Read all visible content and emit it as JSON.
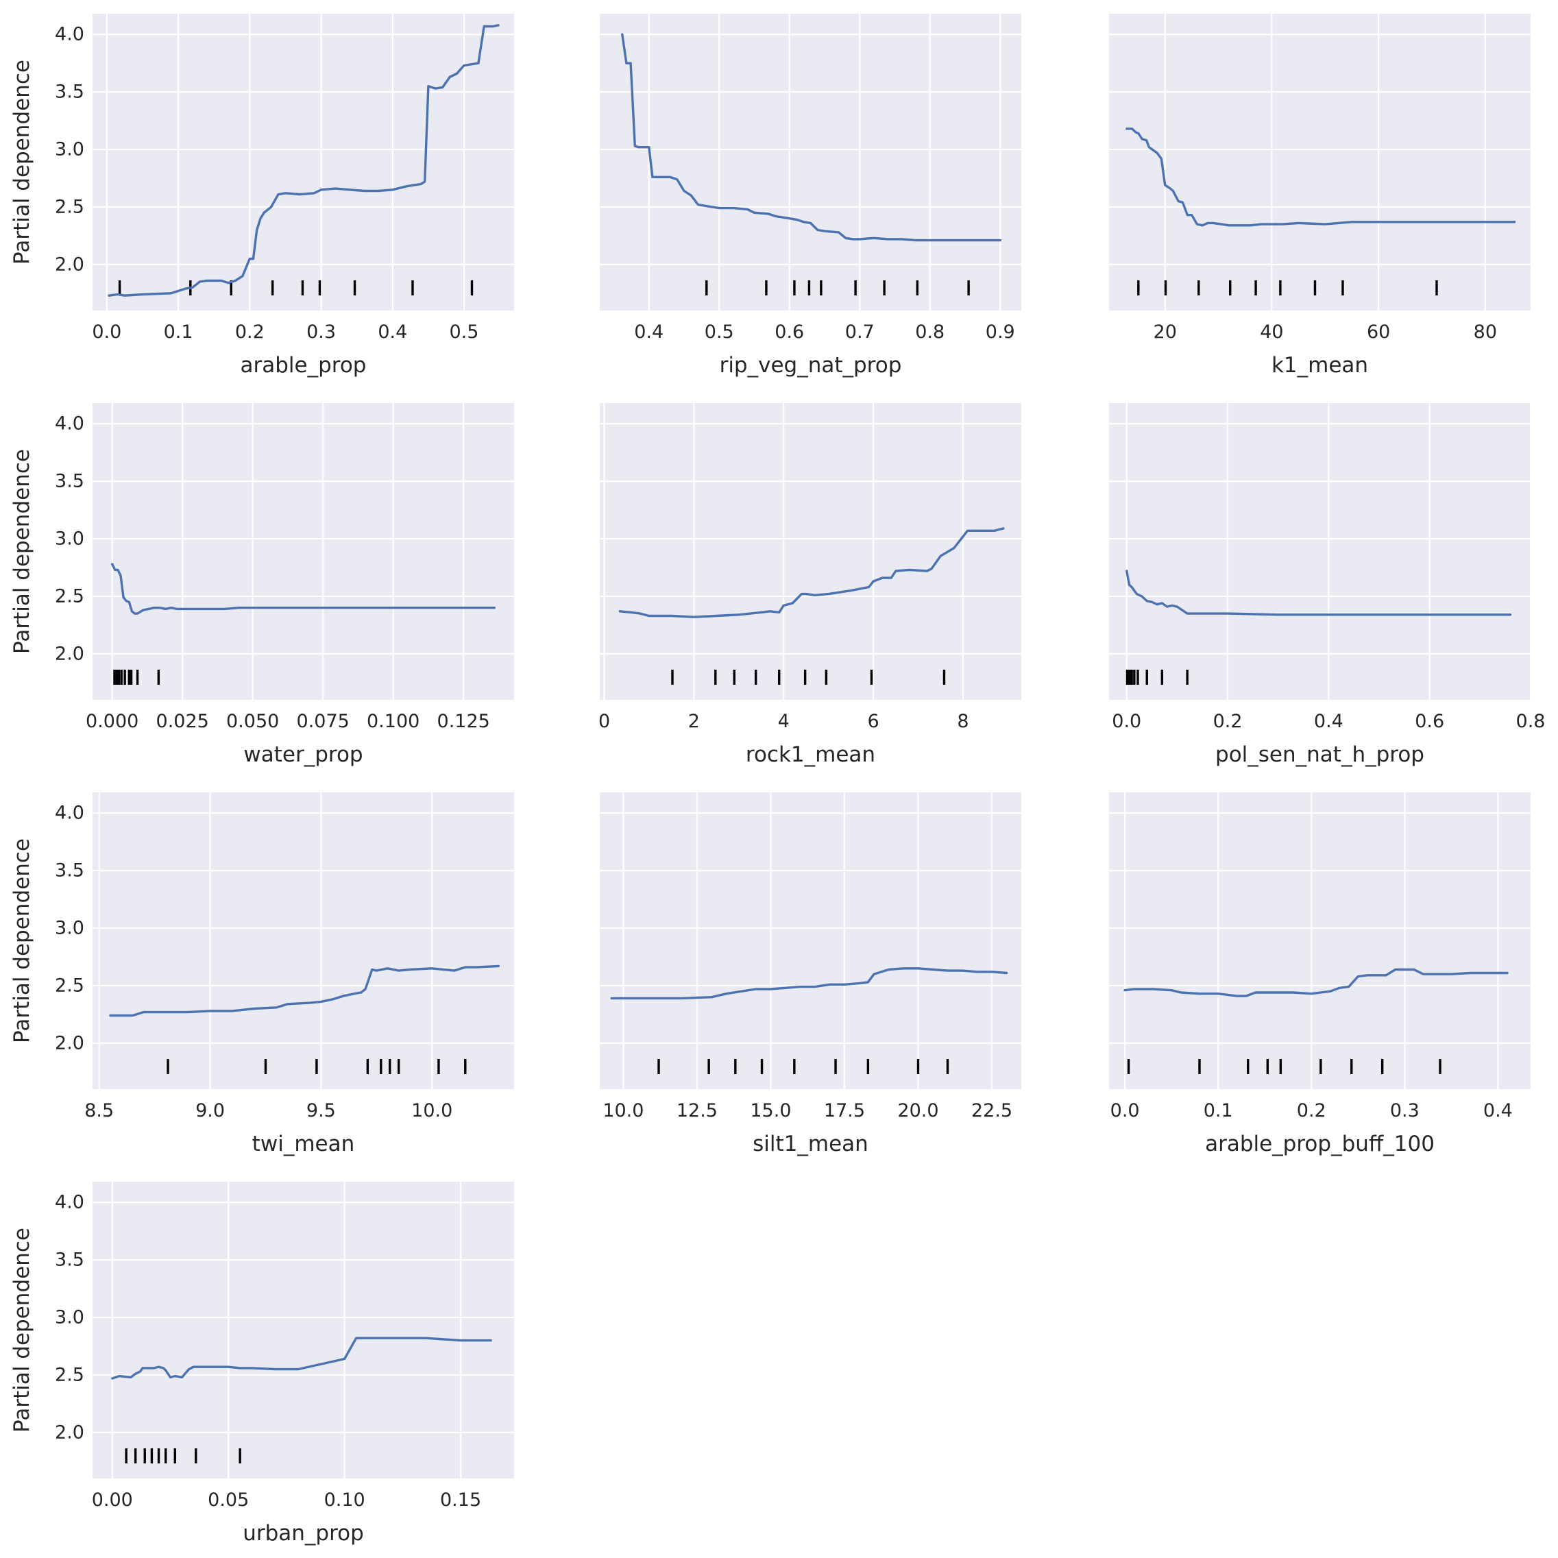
{
  "figure": {
    "ylabel": "Partial dependence",
    "ylim": [
      1.6,
      4.18
    ],
    "yticks": [
      2.0,
      2.5,
      3.0,
      3.5,
      4.0
    ],
    "ytick_labels": [
      "2.0",
      "2.5",
      "3.0",
      "3.5",
      "4.0"
    ],
    "line_color": "#4c72b0",
    "panel_bg_color": "#eaeaf2",
    "decile_color": "#000000"
  },
  "chart_data": [
    {
      "type": "line",
      "xlabel": "arable_prop",
      "xlim": [
        -0.02,
        0.57
      ],
      "xticks": [
        0.0,
        0.1,
        0.2,
        0.3,
        0.4,
        0.5
      ],
      "xtick_labels": [
        "0.0",
        "0.1",
        "0.2",
        "0.3",
        "0.4",
        "0.5"
      ],
      "deciles": [
        0.018,
        0.117,
        0.174,
        0.232,
        0.274,
        0.298,
        0.347,
        0.428,
        0.511
      ],
      "x": [
        0.003,
        0.015,
        0.025,
        0.05,
        0.09,
        0.1,
        0.11,
        0.12,
        0.13,
        0.14,
        0.16,
        0.17,
        0.18,
        0.19,
        0.2,
        0.205,
        0.21,
        0.215,
        0.22,
        0.23,
        0.24,
        0.25,
        0.27,
        0.29,
        0.3,
        0.32,
        0.34,
        0.36,
        0.38,
        0.4,
        0.42,
        0.44,
        0.445,
        0.45,
        0.46,
        0.47,
        0.48,
        0.49,
        0.5,
        0.51,
        0.52,
        0.528,
        0.54,
        0.548
      ],
      "y": [
        1.73,
        1.74,
        1.73,
        1.74,
        1.75,
        1.77,
        1.79,
        1.8,
        1.85,
        1.86,
        1.86,
        1.84,
        1.86,
        1.9,
        2.05,
        2.05,
        2.3,
        2.4,
        2.45,
        2.5,
        2.61,
        2.62,
        2.61,
        2.62,
        2.65,
        2.66,
        2.65,
        2.64,
        2.64,
        2.65,
        2.68,
        2.7,
        2.72,
        3.55,
        3.53,
        3.54,
        3.63,
        3.66,
        3.73,
        3.74,
        3.75,
        4.07,
        4.07,
        4.08
      ]
    },
    {
      "type": "line",
      "xlabel": "rip_veg_nat_prop",
      "xlim": [
        0.33,
        0.93
      ],
      "xticks": [
        0.4,
        0.5,
        0.6,
        0.7,
        0.8,
        0.9
      ],
      "xtick_labels": [
        "0.4",
        "0.5",
        "0.6",
        "0.7",
        "0.8",
        "0.9"
      ],
      "deciles": [
        0.482,
        0.567,
        0.607,
        0.628,
        0.645,
        0.694,
        0.735,
        0.782,
        0.855
      ],
      "x": [
        0.362,
        0.368,
        0.374,
        0.38,
        0.385,
        0.4,
        0.405,
        0.43,
        0.44,
        0.45,
        0.46,
        0.47,
        0.48,
        0.5,
        0.52,
        0.54,
        0.55,
        0.57,
        0.58,
        0.6,
        0.61,
        0.62,
        0.63,
        0.64,
        0.65,
        0.67,
        0.68,
        0.69,
        0.7,
        0.72,
        0.74,
        0.76,
        0.78,
        0.8,
        0.85,
        0.9
      ],
      "y": [
        4.0,
        3.75,
        3.75,
        3.03,
        3.02,
        3.02,
        2.76,
        2.76,
        2.74,
        2.64,
        2.6,
        2.52,
        2.51,
        2.49,
        2.49,
        2.48,
        2.45,
        2.44,
        2.42,
        2.4,
        2.39,
        2.37,
        2.36,
        2.3,
        2.29,
        2.28,
        2.23,
        2.22,
        2.22,
        2.23,
        2.22,
        2.22,
        2.21,
        2.21,
        2.21,
        2.21
      ]
    },
    {
      "type": "line",
      "xlabel": "k1_mean",
      "xlim": [
        9.5,
        88.5
      ],
      "xticks": [
        20,
        40,
        60,
        80
      ],
      "xtick_labels": [
        "20",
        "40",
        "60",
        "80"
      ],
      "deciles": [
        15.0,
        20.1,
        26.3,
        32.2,
        37.0,
        41.6,
        48.1,
        53.3,
        70.9
      ],
      "x": [
        12.8,
        13.8,
        14.5,
        15.0,
        15.7,
        16.5,
        17.0,
        18.5,
        19.3,
        20.0,
        21.0,
        21.5,
        22.5,
        23.3,
        24.2,
        25.0,
        26.0,
        27.0,
        28.0,
        29.0,
        32,
        36,
        38,
        42,
        45,
        50,
        55,
        60,
        70,
        80,
        85.5
      ],
      "y": [
        3.18,
        3.18,
        3.15,
        3.14,
        3.09,
        3.08,
        3.02,
        2.97,
        2.92,
        2.69,
        2.66,
        2.64,
        2.55,
        2.54,
        2.43,
        2.43,
        2.35,
        2.34,
        2.36,
        2.36,
        2.34,
        2.34,
        2.35,
        2.35,
        2.36,
        2.35,
        2.37,
        2.37,
        2.37,
        2.37,
        2.37
      ]
    },
    {
      "type": "line",
      "xlabel": "water_prop",
      "xlim": [
        -0.007,
        0.143
      ],
      "xticks": [
        0.0,
        0.025,
        0.05,
        0.075,
        0.1,
        0.125
      ],
      "xtick_labels": [
        "0.000",
        "0.025",
        "0.050",
        "0.075",
        "0.100",
        "0.125"
      ],
      "deciles": [
        0.0008,
        0.0016,
        0.0024,
        0.0033,
        0.0045,
        0.006,
        0.0068,
        0.009,
        0.0165
      ],
      "x": [
        0.0,
        0.001,
        0.002,
        0.003,
        0.004,
        0.005,
        0.006,
        0.007,
        0.008,
        0.009,
        0.011,
        0.013,
        0.015,
        0.017,
        0.019,
        0.021,
        0.023,
        0.03,
        0.04,
        0.045,
        0.06,
        0.08,
        0.1,
        0.12,
        0.136
      ],
      "y": [
        2.78,
        2.73,
        2.73,
        2.68,
        2.49,
        2.46,
        2.45,
        2.37,
        2.35,
        2.35,
        2.38,
        2.39,
        2.4,
        2.4,
        2.39,
        2.4,
        2.39,
        2.39,
        2.39,
        2.4,
        2.4,
        2.4,
        2.4,
        2.4,
        2.4
      ]
    },
    {
      "type": "line",
      "xlabel": "rock1_mean",
      "xlim": [
        -0.1,
        9.3
      ],
      "xticks": [
        0,
        2,
        4,
        6,
        8
      ],
      "xtick_labels": [
        "0",
        "2",
        "4",
        "6",
        "8"
      ],
      "deciles": [
        1.52,
        2.48,
        2.9,
        3.38,
        3.9,
        4.48,
        4.95,
        5.96,
        7.58
      ],
      "x": [
        0.35,
        0.6,
        0.8,
        1.0,
        1.5,
        2.0,
        2.5,
        3.0,
        3.5,
        3.7,
        3.9,
        4.0,
        4.2,
        4.4,
        4.5,
        4.7,
        5.0,
        5.5,
        5.9,
        6.0,
        6.2,
        6.4,
        6.5,
        6.8,
        7.2,
        7.3,
        7.5,
        7.8,
        8.1,
        8.7,
        8.9
      ],
      "y": [
        2.37,
        2.36,
        2.35,
        2.33,
        2.33,
        2.32,
        2.33,
        2.34,
        2.36,
        2.37,
        2.36,
        2.42,
        2.44,
        2.52,
        2.52,
        2.51,
        2.52,
        2.55,
        2.58,
        2.63,
        2.66,
        2.66,
        2.72,
        2.73,
        2.72,
        2.74,
        2.85,
        2.92,
        3.07,
        3.07,
        3.09
      ]
    },
    {
      "type": "line",
      "xlabel": "pol_sen_nat_h_prop",
      "xlim": [
        -0.035,
        0.8
      ],
      "xticks": [
        0.0,
        0.2,
        0.4,
        0.6,
        0.8
      ],
      "xtick_labels": [
        "0.0",
        "0.2",
        "0.4",
        "0.6",
        "0.8"
      ],
      "deciles": [
        0.001,
        0.004,
        0.007,
        0.01,
        0.015,
        0.022,
        0.04,
        0.07,
        0.12
      ],
      "x": [
        0.0,
        0.005,
        0.01,
        0.02,
        0.03,
        0.04,
        0.05,
        0.06,
        0.07,
        0.08,
        0.09,
        0.1,
        0.11,
        0.12,
        0.2,
        0.3,
        0.4,
        0.5,
        0.6,
        0.7,
        0.76
      ],
      "y": [
        2.72,
        2.6,
        2.58,
        2.52,
        2.5,
        2.46,
        2.45,
        2.43,
        2.44,
        2.41,
        2.42,
        2.41,
        2.38,
        2.35,
        2.35,
        2.34,
        2.34,
        2.34,
        2.34,
        2.34,
        2.34
      ]
    },
    {
      "type": "line",
      "xlabel": "twi_mean",
      "xlim": [
        8.47,
        10.37
      ],
      "xticks": [
        8.5,
        9.0,
        9.5,
        10.0
      ],
      "xtick_labels": [
        "8.5",
        "9.0",
        "9.5",
        "10.0"
      ],
      "deciles": [
        8.81,
        9.25,
        9.48,
        9.71,
        9.77,
        9.81,
        9.85,
        10.03,
        10.15
      ],
      "x": [
        8.55,
        8.65,
        8.7,
        8.9,
        9.0,
        9.1,
        9.15,
        9.2,
        9.3,
        9.35,
        9.45,
        9.5,
        9.55,
        9.6,
        9.65,
        9.68,
        9.7,
        9.73,
        9.75,
        9.8,
        9.85,
        9.9,
        10.0,
        10.1,
        10.15,
        10.2,
        10.3
      ],
      "y": [
        2.24,
        2.24,
        2.27,
        2.27,
        2.28,
        2.28,
        2.29,
        2.3,
        2.31,
        2.34,
        2.35,
        2.36,
        2.38,
        2.41,
        2.43,
        2.44,
        2.47,
        2.64,
        2.63,
        2.65,
        2.63,
        2.64,
        2.65,
        2.63,
        2.66,
        2.66,
        2.67
      ]
    },
    {
      "type": "line",
      "xlabel": "silt1_mean",
      "xlim": [
        9.2,
        23.5
      ],
      "xticks": [
        10.0,
        12.5,
        15.0,
        17.5,
        20.0,
        22.5
      ],
      "xtick_labels": [
        "10.0",
        "12.5",
        "15.0",
        "17.5",
        "20.0",
        "22.5"
      ],
      "deciles": [
        11.2,
        12.9,
        13.8,
        14.7,
        15.8,
        17.2,
        18.3,
        20.0,
        21.0
      ],
      "x": [
        9.6,
        10.5,
        11.0,
        12.0,
        13.0,
        13.5,
        14.0,
        14.5,
        15.0,
        15.5,
        16.0,
        16.5,
        17.0,
        17.5,
        18.0,
        18.3,
        18.5,
        19.0,
        19.5,
        20.0,
        20.5,
        21.0,
        21.5,
        22.0,
        22.5,
        23.0
      ],
      "y": [
        2.39,
        2.39,
        2.39,
        2.39,
        2.4,
        2.43,
        2.45,
        2.47,
        2.47,
        2.48,
        2.49,
        2.49,
        2.51,
        2.51,
        2.52,
        2.53,
        2.6,
        2.64,
        2.65,
        2.65,
        2.64,
        2.63,
        2.63,
        2.62,
        2.62,
        2.61
      ]
    },
    {
      "type": "line",
      "xlabel": "arable_prop_buff_100",
      "xlim": [
        -0.017,
        0.435
      ],
      "xticks": [
        0.0,
        0.1,
        0.2,
        0.3,
        0.4
      ],
      "xtick_labels": [
        "0.0",
        "0.1",
        "0.2",
        "0.3",
        "0.4"
      ],
      "deciles": [
        0.004,
        0.08,
        0.132,
        0.153,
        0.167,
        0.21,
        0.243,
        0.276,
        0.338
      ],
      "x": [
        0.0,
        0.01,
        0.03,
        0.05,
        0.06,
        0.08,
        0.1,
        0.12,
        0.13,
        0.14,
        0.16,
        0.18,
        0.2,
        0.21,
        0.22,
        0.23,
        0.24,
        0.25,
        0.26,
        0.28,
        0.29,
        0.3,
        0.31,
        0.32,
        0.35,
        0.37,
        0.41
      ],
      "y": [
        2.46,
        2.47,
        2.47,
        2.46,
        2.44,
        2.43,
        2.43,
        2.41,
        2.41,
        2.44,
        2.44,
        2.44,
        2.43,
        2.44,
        2.45,
        2.48,
        2.49,
        2.58,
        2.59,
        2.59,
        2.64,
        2.64,
        2.64,
        2.6,
        2.6,
        2.61,
        2.61
      ]
    },
    {
      "type": "line",
      "xlabel": "urban_prop",
      "xlim": [
        -0.0085,
        0.173
      ],
      "xticks": [
        0.0,
        0.05,
        0.1,
        0.15
      ],
      "xtick_labels": [
        "0.00",
        "0.05",
        "0.10",
        "0.15"
      ],
      "deciles": [
        0.006,
        0.01,
        0.014,
        0.017,
        0.02,
        0.023,
        0.027,
        0.036,
        0.055
      ],
      "x": [
        0.0,
        0.003,
        0.008,
        0.01,
        0.012,
        0.013,
        0.014,
        0.018,
        0.02,
        0.022,
        0.023,
        0.025,
        0.027,
        0.03,
        0.033,
        0.035,
        0.05,
        0.055,
        0.06,
        0.07,
        0.08,
        0.1,
        0.105,
        0.12,
        0.135,
        0.15,
        0.163
      ],
      "y": [
        2.47,
        2.49,
        2.48,
        2.51,
        2.53,
        2.56,
        2.56,
        2.56,
        2.57,
        2.56,
        2.54,
        2.48,
        2.49,
        2.48,
        2.55,
        2.57,
        2.57,
        2.56,
        2.56,
        2.55,
        2.55,
        2.64,
        2.82,
        2.82,
        2.82,
        2.8,
        2.8
      ]
    }
  ]
}
